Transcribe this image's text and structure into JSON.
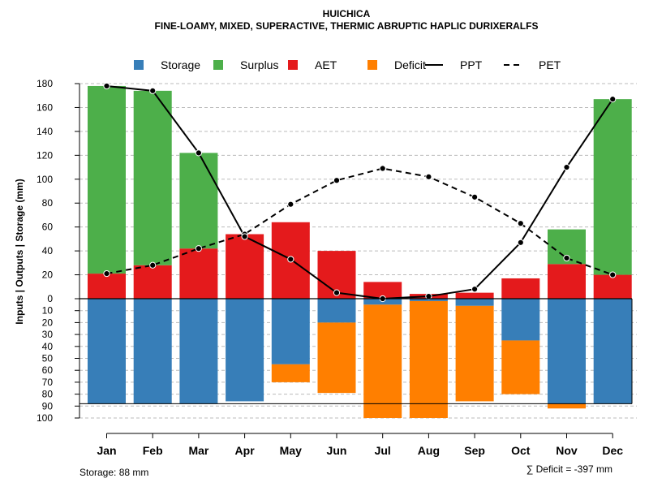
{
  "chart_data": {
    "type": "bar",
    "title": "HUICHICA",
    "subtitle": "FINE-LOAMY, MIXED, SUPERACTIVE, THERMIC ABRUPTIC HAPLIC DURIXERALFS",
    "ylabel": "Inputs | Outputs | Storage    (mm)",
    "categories": [
      "Jan",
      "Feb",
      "Mar",
      "Apr",
      "May",
      "Jun",
      "Jul",
      "Aug",
      "Sep",
      "Oct",
      "Nov",
      "Dec"
    ],
    "ylim_top": [
      0,
      180
    ],
    "ylim_bottom": [
      0,
      100
    ],
    "yticks_top": [
      "0",
      "20",
      "40",
      "60",
      "80",
      "100",
      "120",
      "140",
      "160",
      "180"
    ],
    "yticks_bottom": [
      "10",
      "20",
      "30",
      "40",
      "50",
      "60",
      "70",
      "80",
      "90",
      "100"
    ],
    "legend": [
      {
        "label": "Storage",
        "kind": "box",
        "color": "#377EB8"
      },
      {
        "label": "Surplus",
        "kind": "box",
        "color": "#4DAF4A"
      },
      {
        "label": "AET",
        "kind": "box",
        "color": "#E41A1C"
      },
      {
        "label": "Deficit",
        "kind": "box",
        "color": "#FF7F00"
      },
      {
        "label": "PPT",
        "kind": "line"
      },
      {
        "label": "PET",
        "kind": "dash"
      }
    ],
    "colors": {
      "storage": "#377EB8",
      "surplus": "#4DAF4A",
      "aet": "#E41A1C",
      "deficit": "#FF7F00"
    },
    "series": [
      {
        "name": "AET",
        "values": [
          21,
          28,
          42,
          54,
          64,
          40,
          14,
          4,
          5,
          17,
          29,
          20
        ]
      },
      {
        "name": "Surplus",
        "values": [
          157,
          146,
          80,
          0,
          0,
          0,
          0,
          0,
          0,
          0,
          29,
          147
        ]
      },
      {
        "name": "Storage",
        "values": [
          88,
          88,
          88,
          86,
          55,
          20,
          5,
          2,
          6,
          35,
          88,
          88
        ]
      },
      {
        "name": "Deficit",
        "values": [
          0,
          0,
          0,
          0,
          15,
          59,
          95,
          98,
          80,
          45,
          4,
          0
        ]
      },
      {
        "name": "PPT",
        "values": [
          178,
          174,
          122,
          52,
          33,
          5,
          0,
          2,
          8,
          47,
          110,
          167
        ]
      },
      {
        "name": "PET",
        "values": [
          21,
          28,
          42,
          54,
          79,
          99,
          109,
          102,
          85,
          63,
          34,
          20
        ]
      }
    ],
    "storage_capacity": 88,
    "footer_left": "Storage: 88 mm",
    "footer_right": "∑ Deficit = -397 mm"
  }
}
